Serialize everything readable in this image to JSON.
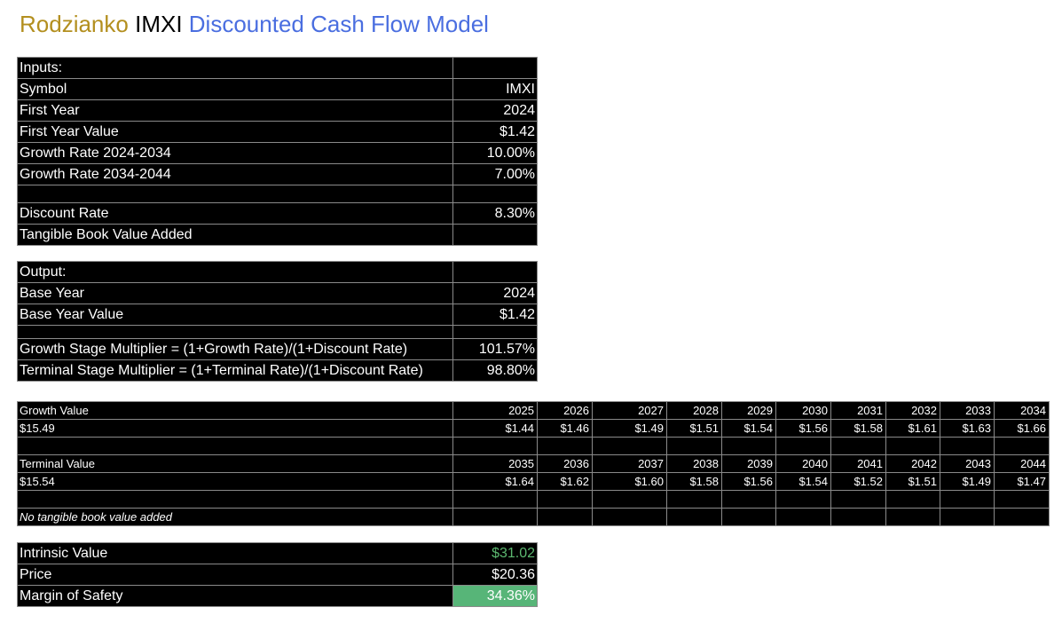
{
  "title": {
    "author": "Rodzianko",
    "symbol": "IMXI",
    "model": "Discounted Cash Flow Model"
  },
  "inputs": {
    "header": "Inputs:",
    "rows": [
      {
        "label": "Symbol",
        "value": "IMXI"
      },
      {
        "label": "First Year",
        "value": "2024"
      },
      {
        "label": "First Year Value",
        "value": "$1.42"
      },
      {
        "label": "Growth Rate 2024-2034",
        "value": "10.00%"
      },
      {
        "label": "Growth Rate 2034-2044",
        "value": "7.00%"
      },
      {
        "label": "",
        "value": ""
      },
      {
        "label": "Discount Rate",
        "value": "8.30%"
      },
      {
        "label": "Tangible Book Value Added",
        "value": ""
      }
    ]
  },
  "output": {
    "header": "Output:",
    "rows": [
      {
        "label": "Base Year",
        "value": "2024"
      },
      {
        "label": "Base Year Value",
        "value": "$1.42"
      },
      {
        "label": "",
        "value": ""
      },
      {
        "label": "Growth Stage Multiplier = (1+Growth Rate)/(1+Discount Rate)",
        "value": "101.57%"
      },
      {
        "label": "Terminal Stage Multiplier = (1+Terminal Rate)/(1+Discount Rate)",
        "value": "98.80%"
      }
    ]
  },
  "projection": {
    "growth": {
      "label": "Growth Value",
      "total": "$15.49",
      "years": [
        "2025",
        "2026",
        "2027",
        "2028",
        "2029",
        "2030",
        "2031",
        "2032",
        "2033",
        "2034"
      ],
      "values": [
        "$1.44",
        "$1.46",
        "$1.49",
        "$1.51",
        "$1.54",
        "$1.56",
        "$1.58",
        "$1.61",
        "$1.63",
        "$1.66"
      ]
    },
    "terminal": {
      "label": "Terminal Value",
      "total": "$15.54",
      "years": [
        "2035",
        "2036",
        "2037",
        "2038",
        "2039",
        "2040",
        "2041",
        "2042",
        "2043",
        "2044"
      ],
      "values": [
        "$1.64",
        "$1.62",
        "$1.60",
        "$1.58",
        "$1.56",
        "$1.54",
        "$1.52",
        "$1.51",
        "$1.49",
        "$1.47"
      ]
    },
    "note": "No tangible book value added"
  },
  "summary": {
    "intrinsic_label": "Intrinsic Value",
    "intrinsic_value": "$31.02",
    "price_label": "Price",
    "price_value": "$20.36",
    "mos_label": "Margin of Safety",
    "mos_value": "34.36%"
  },
  "colors": {
    "title_author": "#b38f1f",
    "title_model": "#4a6ee0",
    "intrinsic_text": "#5cb870",
    "margin_bg": "#57b578"
  }
}
